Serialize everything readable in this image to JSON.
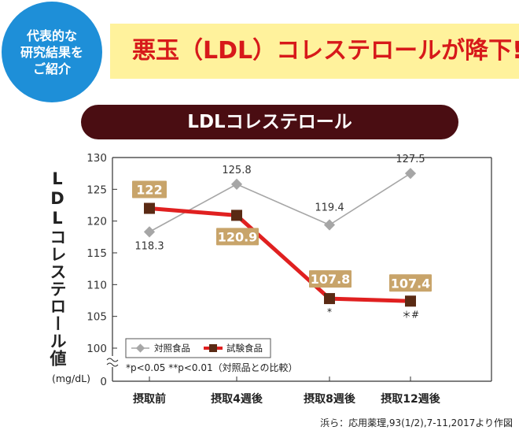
{
  "badge": {
    "line1": "代表的な",
    "line2": "研究結果を",
    "line3": "ご紹介"
  },
  "headline": "悪玉（LDL）コレステロールが降下!",
  "chart_title": "LDLコレステロール",
  "source_note": "浜ら：応用薬理,93(1/2),7-11,2017より作図",
  "chart_data": {
    "type": "line",
    "title": "LDLコレステロール",
    "ylabel": "LDLコレステロール値",
    "yunit": "(mg/dL)",
    "categories": [
      "摂取前",
      "摂取4週後",
      "摂取8週後",
      "摂取12週後"
    ],
    "y_ticks": [
      0,
      100,
      105,
      110,
      115,
      120,
      125,
      130
    ],
    "ylim": [
      100,
      130
    ],
    "axis_break": true,
    "legend_position": "bottom-left",
    "series": [
      {
        "name": "対照食品",
        "values": [
          118.3,
          125.8,
          119.4,
          127.5
        ],
        "labels": [
          "118.3",
          "125.8",
          "119.4",
          "127.5"
        ],
        "color": "#a6a6a6",
        "marker": "diamond"
      },
      {
        "name": "試験食品",
        "values": [
          122,
          120.9,
          107.8,
          107.4
        ],
        "labels": [
          "122",
          "120.9",
          "107.8",
          "107.4"
        ],
        "color": "#e02020",
        "marker": "square",
        "marker_color": "#5a2a14",
        "label_bg": "#c8a46a"
      }
    ],
    "significance_marks": [
      "",
      "",
      "*",
      "＊#"
    ],
    "footnote": "*p<0.05 **p<0.01（対照品との比較）"
  }
}
